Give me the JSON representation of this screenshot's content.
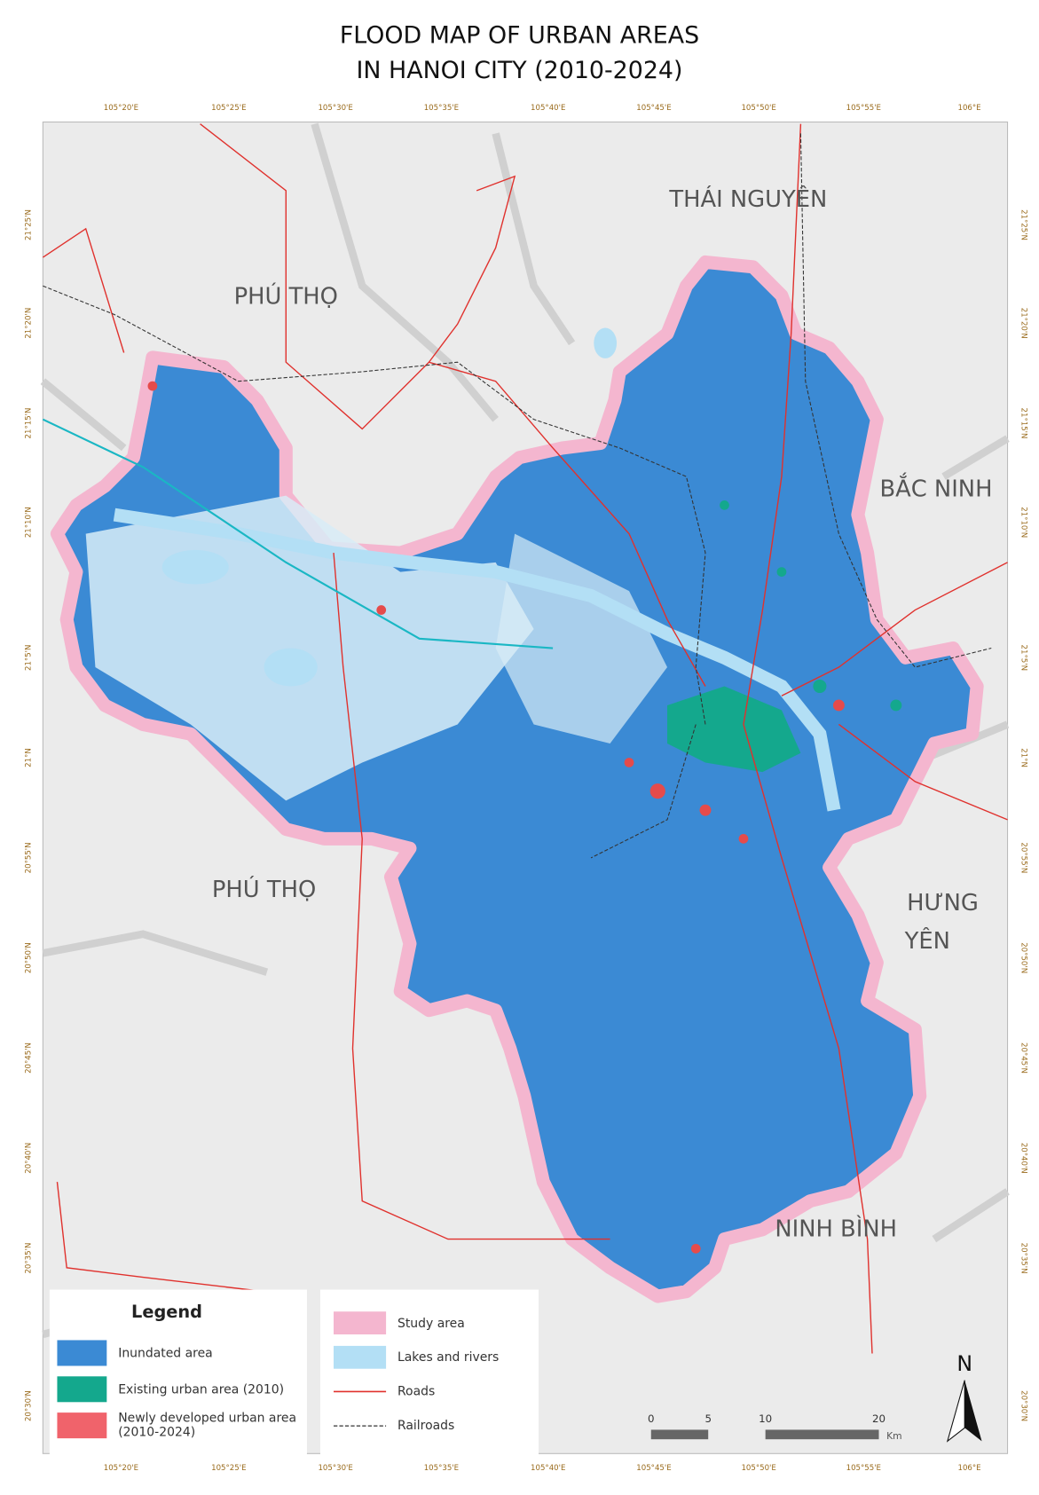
{
  "title": [
    "FLOOD MAP OF URBAN AREAS",
    "IN HANOI CITY (2010-2024)"
  ],
  "longitude_labels": [
    "105°20'E",
    "105°25'E",
    "105°30'E",
    "105°35'E",
    "105°40'E",
    "105°45'E",
    "105°50'E",
    "105°55'E",
    "106°E"
  ],
  "latitude_labels": [
    "21°25'N",
    "21°20'N",
    "21°15'N",
    "21°10'N",
    "21°5'N",
    "21°N",
    "20°55'N",
    "20°50'N",
    "20°45'N",
    "20°40'N",
    "20°35'N",
    "20°30'N"
  ],
  "place_labels": [
    "THÁI NGUYÊN",
    "PHÚ THỌ",
    "BẮC NINH",
    "PHÚ THỌ",
    "HƯNG",
    "YÊN",
    "NINH BÌNH"
  ],
  "legend": {
    "title": "Legend",
    "items": [
      "Inundated area",
      "Existing urban area (2010)",
      "Newly developed urban area",
      "(2010-2024)",
      "Study area",
      "Lakes and rivers",
      "Roads",
      "Railroads"
    ]
  },
  "scale_bar": {
    "ticks": [
      "0",
      "5",
      "10",
      "20"
    ],
    "unit": "Km"
  },
  "north": "N"
}
